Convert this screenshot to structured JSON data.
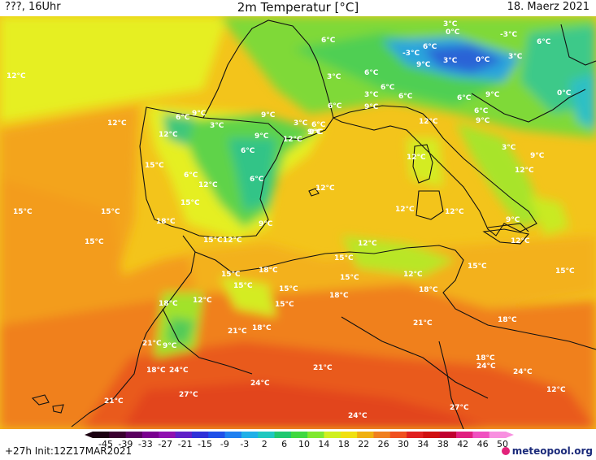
{
  "header": {
    "left": "???, 16Uhr",
    "title": "2m Temperatur [°C]",
    "right": "18. Maerz 2021"
  },
  "colorbar": {
    "ticks": [
      "-45",
      "-39",
      "-33",
      "-27",
      "-21",
      "-15",
      "-9",
      "-3",
      "2",
      "6",
      "10",
      "14",
      "18",
      "22",
      "26",
      "30",
      "34",
      "38",
      "42",
      "46",
      "50"
    ],
    "colors": [
      "#1a0010",
      "#3a0030",
      "#5a0060",
      "#7a0090",
      "#9010b0",
      "#6020c8",
      "#3030d8",
      "#2050e8",
      "#2080f0",
      "#20b0e8",
      "#20c8c0",
      "#20c870",
      "#40d840",
      "#80e830",
      "#d0f020",
      "#f0e010",
      "#f0b010",
      "#f08020",
      "#f05020",
      "#e02020",
      "#d01010",
      "#c00030",
      "#e02080",
      "#f050c0",
      "#f890e0"
    ]
  },
  "footer": {
    "left": "+27h  Init:12Z17MAR2021",
    "brand": "meteopool.org"
  },
  "labels": [
    {
      "text": "6°C"
    },
    {
      "text": "3°C"
    },
    {
      "text": "0°C"
    },
    {
      "text": "-3°C"
    },
    {
      "text": "6°C"
    },
    {
      "text": "-3°C"
    },
    {
      "text": "9°C"
    },
    {
      "text": "3°C"
    },
    {
      "text": "0°C"
    },
    {
      "text": "3°C"
    },
    {
      "text": "6°C"
    },
    {
      "text": "12°C"
    },
    {
      "text": "3°C"
    },
    {
      "text": "6°C"
    },
    {
      "text": "6°C"
    },
    {
      "text": "6°C"
    },
    {
      "text": "3°C"
    },
    {
      "text": "6°C"
    },
    {
      "text": "9°C"
    },
    {
      "text": "6°C"
    },
    {
      "text": "9°C"
    },
    {
      "text": "0°C"
    },
    {
      "text": "12°C"
    },
    {
      "text": "6°C"
    },
    {
      "text": "9°C"
    },
    {
      "text": "3°C"
    },
    {
      "text": "9°C"
    },
    {
      "text": "6°C"
    },
    {
      "text": "3°C"
    },
    {
      "text": "9°C"
    },
    {
      "text": "12°C"
    },
    {
      "text": "9°C"
    },
    {
      "text": "6°C"
    },
    {
      "text": "0°C"
    },
    {
      "text": "12°C"
    },
    {
      "text": "12°C"
    },
    {
      "text": "6°C"
    },
    {
      "text": "3°C"
    },
    {
      "text": "9°C"
    },
    {
      "text": "9°C"
    },
    {
      "text": "12°C"
    },
    {
      "text": "15°C"
    },
    {
      "text": "6°C"
    },
    {
      "text": "12°C"
    },
    {
      "text": "12°C"
    },
    {
      "text": "12°C"
    },
    {
      "text": "15°C"
    },
    {
      "text": "6°C"
    },
    {
      "text": "15°C"
    },
    {
      "text": "12°C"
    },
    {
      "text": "12°C"
    },
    {
      "text": "9°C"
    },
    {
      "text": "15°C"
    },
    {
      "text": "15°C"
    },
    {
      "text": "18°C"
    },
    {
      "text": "9°C"
    },
    {
      "text": "12°C"
    },
    {
      "text": "15°C"
    },
    {
      "text": "12°C"
    },
    {
      "text": "12°C"
    },
    {
      "text": "15°C"
    },
    {
      "text": "15°C"
    },
    {
      "text": "15°C"
    },
    {
      "text": "18°C"
    },
    {
      "text": "15°C"
    },
    {
      "text": "15°C"
    },
    {
      "text": "12°C"
    },
    {
      "text": "18°C"
    },
    {
      "text": "15°C"
    },
    {
      "text": "15°C"
    },
    {
      "text": "18°C"
    },
    {
      "text": "15°C"
    },
    {
      "text": "18°C"
    },
    {
      "text": "12°C"
    },
    {
      "text": "18°C"
    },
    {
      "text": "21°C"
    },
    {
      "text": "18°C"
    },
    {
      "text": "21°C"
    },
    {
      "text": "9°C"
    },
    {
      "text": "18°C"
    },
    {
      "text": "24°C"
    },
    {
      "text": "21°C"
    },
    {
      "text": "18°C"
    },
    {
      "text": "24°C"
    },
    {
      "text": "21°C"
    },
    {
      "text": "24°C"
    },
    {
      "text": "27°C"
    },
    {
      "text": "24°C"
    },
    {
      "text": "21°C"
    },
    {
      "text": "27°C"
    },
    {
      "text": "24°C"
    },
    {
      "text": "12°C"
    }
  ]
}
